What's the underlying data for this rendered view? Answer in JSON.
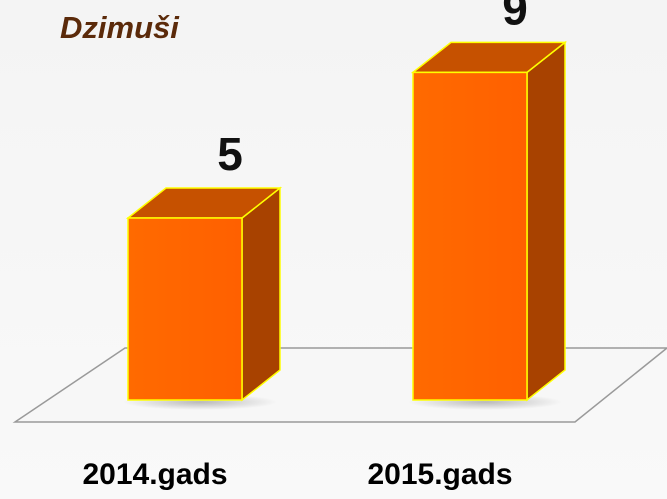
{
  "chart_data": {
    "type": "bar3d",
    "title": "Dzimuši",
    "categories": [
      "2014.gads",
      "2015.gads"
    ],
    "values": [
      5,
      9
    ],
    "color": "#ff6600"
  }
}
